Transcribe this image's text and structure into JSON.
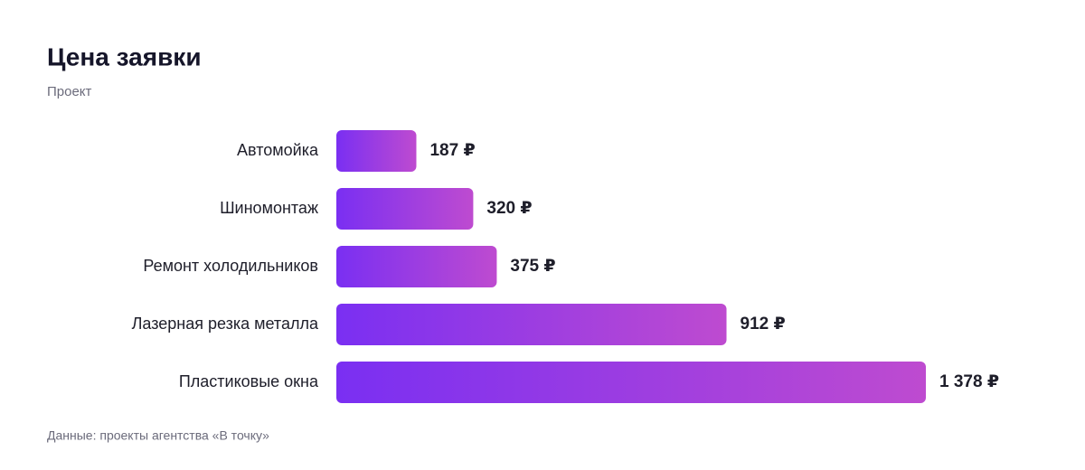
{
  "chart_data": {
    "type": "bar",
    "orientation": "horizontal",
    "title": "Цена заявки",
    "subtitle": "Проект",
    "categories": [
      "Автомойка",
      "Шиномонтаж",
      "Ремонт холодильников",
      "Лазерная резка металла",
      "Пластиковые окна"
    ],
    "values": [
      187,
      320,
      375,
      912,
      1378
    ],
    "value_labels": [
      "187 ₽",
      "320 ₽",
      "375 ₽",
      "912 ₽",
      "1 378 ₽"
    ],
    "gradient": [
      "#7a2ff2",
      "#be4bd0"
    ],
    "source": "Данные: проекты агентства «В точку»"
  }
}
